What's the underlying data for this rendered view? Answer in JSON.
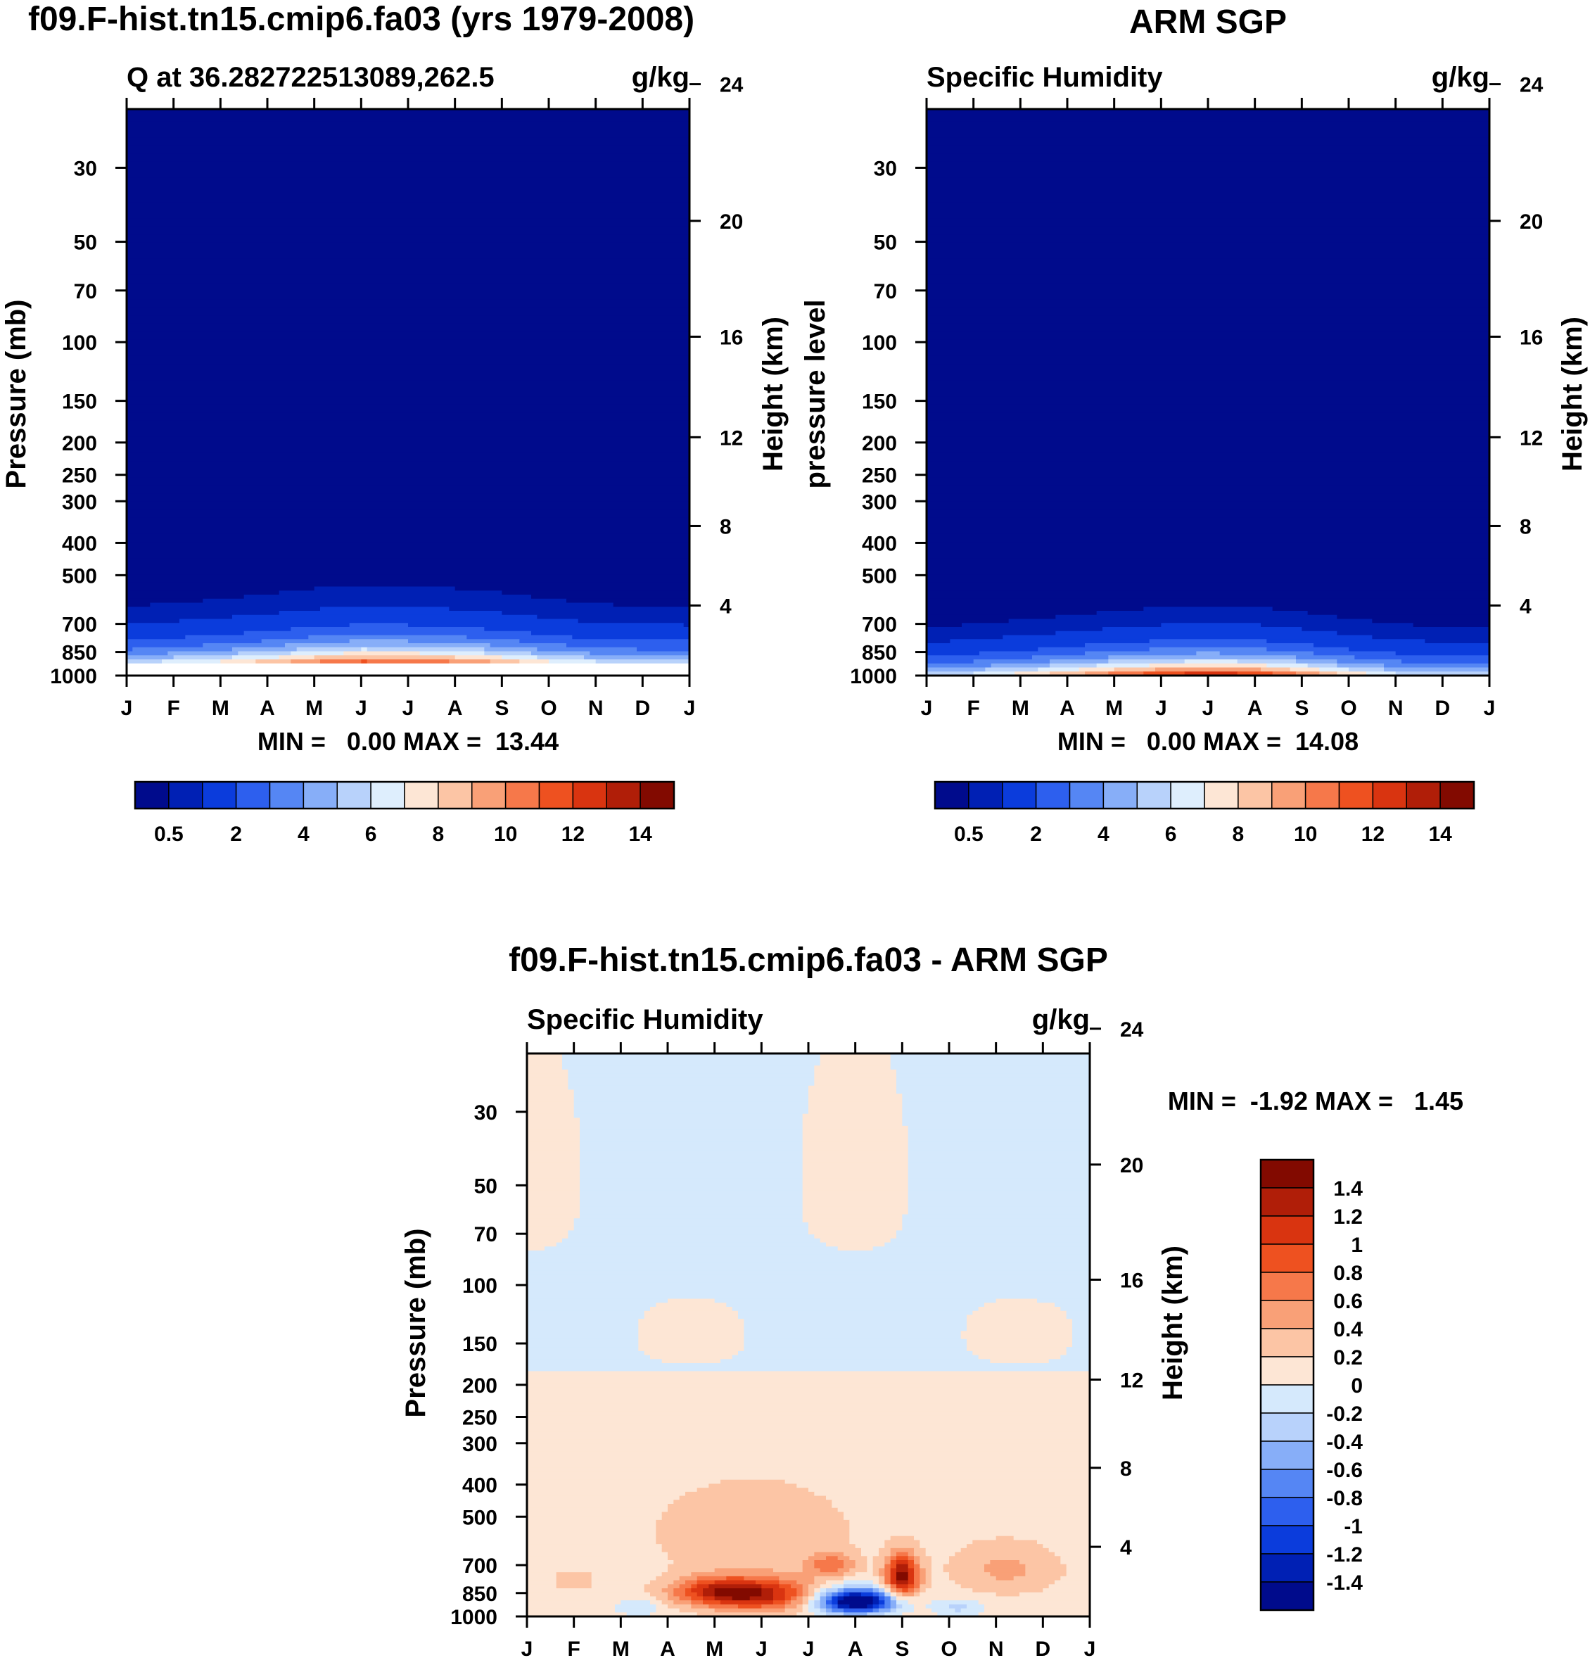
{
  "colors": {
    "seq": [
      "#000b8c",
      "#0020b4",
      "#0b3cdc",
      "#2d5fee",
      "#5586f4",
      "#87aef8",
      "#b8d2fb",
      "#deeefd",
      "#fde6d5",
      "#fcc5a5",
      "#f9a077",
      "#f6784a",
      "#ee5120",
      "#d93410",
      "#b01e08",
      "#820a00"
    ],
    "div": [
      "#000b8c",
      "#0020b4",
      "#0b3cdc",
      "#2d5fee",
      "#5586f4",
      "#87aef8",
      "#b8d2fb",
      "#d5e9fc",
      "#fde6d5",
      "#fcc5a5",
      "#f9a077",
      "#f6784a",
      "#ee5120",
      "#d93410",
      "#b01e08",
      "#820a00"
    ]
  },
  "chart_data": [
    {
      "id": "model",
      "type": "contour",
      "title": "f09.F-hist.tn15.cmip6.fa03 (yrs 1979-2008)",
      "left_title": "Q at 36.282722513089,262.5",
      "right_title": "g/kg",
      "ylabel": "Pressure (mb)",
      "ylabel_right": "Height (km)",
      "xticks": [
        "J",
        "F",
        "M",
        "A",
        "M",
        "J",
        "J",
        "A",
        "S",
        "O",
        "N",
        "D",
        "J"
      ],
      "yticks": [
        30,
        50,
        70,
        100,
        150,
        200,
        250,
        300,
        400,
        500,
        700,
        850,
        1000
      ],
      "yticks_right": [
        24,
        20,
        16,
        12,
        8,
        4
      ],
      "ylim": [
        20,
        1000
      ],
      "bottom_level": 930,
      "stats": "MIN =   0.00 MAX =  13.44",
      "min": 0.0,
      "max": 13.44,
      "colorbar_labels": [
        "0.5",
        "2",
        "4",
        "6",
        "8",
        "10",
        "12",
        "14"
      ],
      "colorbar_levels": [
        0.5,
        1,
        2,
        3,
        4,
        5,
        6,
        7,
        8,
        9,
        10,
        11,
        12,
        13,
        14
      ],
      "monthly_peak": [
        6.5,
        7.5,
        8.5,
        10.0,
        12.0,
        13.4,
        13.0,
        12.0,
        10.5,
        8.5,
        7.2,
        6.6,
        6.5
      ],
      "vertical_scale_mb": 120
    },
    {
      "id": "obs",
      "type": "contour",
      "title": "ARM SGP",
      "left_title": "Specific Humidity",
      "right_title": "g/kg",
      "ylabel": "pressure level",
      "ylabel_right": "Height (km)",
      "xticks": [
        "J",
        "F",
        "M",
        "A",
        "M",
        "J",
        "J",
        "A",
        "S",
        "O",
        "N",
        "D",
        "J"
      ],
      "yticks": [
        30,
        50,
        70,
        100,
        150,
        200,
        250,
        300,
        400,
        500,
        700,
        850,
        1000
      ],
      "yticks_right": [
        24,
        20,
        16,
        12,
        8,
        4
      ],
      "ylim": [
        20,
        1000
      ],
      "bottom_level": 1000,
      "stats": "MIN =   0.00 MAX =  14.08",
      "min": 0.0,
      "max": 14.08,
      "colorbar_labels": [
        "0.5",
        "2",
        "4",
        "6",
        "8",
        "10",
        "12",
        "14"
      ],
      "colorbar_levels": [
        0.5,
        1,
        2,
        3,
        4,
        5,
        6,
        7,
        8,
        9,
        10,
        11,
        12,
        13,
        14
      ],
      "monthly_peak": [
        5.8,
        6.8,
        8.0,
        9.5,
        11.5,
        13.0,
        14.0,
        13.2,
        11.0,
        8.5,
        6.8,
        6.0,
        5.8
      ],
      "vertical_scale_mb": 115
    },
    {
      "id": "diff",
      "type": "contour",
      "title": "f09.F-hist.tn15.cmip6.fa03 - ARM SGP",
      "left_title": "Specific Humidity",
      "right_title": "g/kg",
      "ylabel": "Pressure (mb)",
      "ylabel_right": "Height (km)",
      "xticks": [
        "J",
        "F",
        "M",
        "A",
        "M",
        "J",
        "J",
        "A",
        "S",
        "O",
        "N",
        "D",
        "J"
      ],
      "yticks": [
        30,
        50,
        70,
        100,
        150,
        200,
        250,
        300,
        400,
        500,
        700,
        850,
        1000
      ],
      "yticks_right": [
        24,
        20,
        16,
        12,
        8,
        4
      ],
      "ylim": [
        20,
        1000
      ],
      "bottom_level": 1000,
      "stats": "MIN =  -1.92 MAX =   1.45",
      "min": -1.92,
      "max": 1.45,
      "colorbar_labels": [
        "1.4",
        "1.2",
        "1",
        "0.8",
        "0.6",
        "0.4",
        "0.2",
        "0",
        "-0.2",
        "-0.4",
        "-0.6",
        "-0.8",
        "-1",
        "-1.2",
        "-1.4"
      ],
      "colorbar_levels": [
        -1.4,
        -1.2,
        -1,
        -0.8,
        -0.6,
        -0.4,
        -0.2,
        0,
        0.2,
        0.4,
        0.6,
        0.8,
        1,
        1.2,
        1.4
      ],
      "features": [
        {
          "month": 5.0,
          "level": 860,
          "amp": 1.05,
          "sx": 0.9,
          "sp": 70
        },
        {
          "month": 4.0,
          "level": 840,
          "amp": 0.75,
          "sx": 0.7,
          "sp": 60
        },
        {
          "month": 8.0,
          "level": 760,
          "amp": 1.45,
          "sx": 0.25,
          "sp": 80
        },
        {
          "month": 6.5,
          "level": 700,
          "amp": 0.6,
          "sx": 0.35,
          "sp": 40
        },
        {
          "month": 7.0,
          "level": 900,
          "amp": -1.92,
          "sx": 0.6,
          "sp": 55
        },
        {
          "month": 2.4,
          "level": 940,
          "amp": -0.3,
          "sx": 0.35,
          "sp": 40
        },
        {
          "month": 9.2,
          "level": 940,
          "amp": -0.35,
          "sx": 0.35,
          "sp": 40
        },
        {
          "month": 1.0,
          "level": 780,
          "amp": 0.25,
          "sx": 0.3,
          "sp": 40
        },
        {
          "month": 10.2,
          "level": 720,
          "amp": 0.35,
          "sx": 0.8,
          "sp": 90
        },
        {
          "month": 4.8,
          "level": 560,
          "amp": 0.3,
          "sx": 1.4,
          "sp": 120
        }
      ]
    }
  ]
}
